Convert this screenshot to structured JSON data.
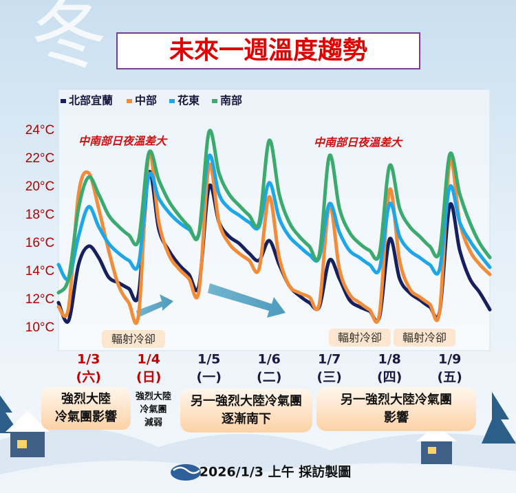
{
  "chart_data": {
    "type": "line",
    "title": "未來一週溫度趨勢",
    "watermark": "冬",
    "categories": [
      null,
      null,
      null,
      "1/3",
      null,
      null,
      null,
      null,
      null,
      "1/4",
      null,
      null,
      null,
      null,
      null,
      "1/5",
      null,
      null,
      null,
      null,
      null,
      "1/6",
      null,
      null,
      null,
      null,
      null,
      "1/7",
      null,
      null,
      null,
      null,
      null,
      "1/8",
      null,
      null,
      null,
      null,
      null,
      "1/9",
      null,
      null,
      null,
      null
    ],
    "weekdays": [
      null,
      null,
      null,
      "(六)",
      null,
      null,
      null,
      null,
      null,
      "(日)",
      null,
      null,
      null,
      null,
      null,
      "(一)",
      null,
      null,
      null,
      null,
      null,
      "(二)",
      null,
      null,
      null,
      null,
      null,
      "(三)",
      null,
      null,
      null,
      null,
      null,
      "(四)",
      null,
      null,
      null,
      null,
      null,
      "(五)",
      null,
      null,
      null,
      null
    ],
    "series": [
      {
        "name": "北部宜蘭",
        "color": "#16205e",
        "values": [
          11.8,
          10.5,
          14.5,
          15.8,
          15.0,
          13.6,
          13.2,
          12.8,
          12.5,
          21.0,
          17.0,
          15.5,
          14.5,
          13.8,
          13.0,
          20.0,
          17.5,
          16.5,
          16.0,
          15.3,
          14.8,
          16.2,
          14.5,
          13.0,
          12.3,
          11.8,
          11.5,
          14.8,
          13.5,
          12.0,
          11.5,
          11.2,
          10.8,
          16.3,
          13.5,
          12.5,
          12.0,
          11.5,
          11.2,
          18.7,
          15.5,
          13.5,
          12.5,
          11.3
        ]
      },
      {
        "name": "中部",
        "color": "#f28c38",
        "values": [
          11.5,
          11.4,
          19.5,
          21.0,
          18.5,
          15.5,
          13.0,
          11.8,
          11.0,
          22.3,
          17.5,
          15.2,
          14.2,
          13.5,
          12.6,
          21.5,
          17.5,
          16.0,
          15.3,
          14.8,
          14.2,
          19.3,
          15.0,
          13.0,
          12.5,
          12.2,
          11.7,
          18.7,
          14.2,
          12.4,
          11.8,
          11.3,
          11.0,
          19.8,
          14.8,
          12.8,
          12.2,
          11.7,
          11.2,
          21.8,
          17.5,
          15.5,
          14.5,
          13.8
        ]
      },
      {
        "name": "花東",
        "color": "#1ea7e8",
        "values": [
          14.5,
          13.5,
          16.5,
          18.6,
          17.2,
          16.0,
          15.3,
          14.8,
          14.6,
          20.8,
          19.2,
          18.2,
          17.5,
          17.0,
          16.7,
          22.2,
          19.5,
          18.5,
          18.0,
          17.5,
          17.2,
          20.3,
          17.8,
          16.5,
          15.8,
          15.2,
          15.0,
          18.8,
          16.8,
          15.5,
          15.0,
          14.5,
          14.2,
          18.8,
          16.5,
          15.5,
          15.0,
          14.5,
          14.2,
          20.0,
          17.5,
          16.2,
          15.2,
          14.3
        ]
      },
      {
        "name": "南部",
        "color": "#3aaa6e",
        "values": [
          12.5,
          13.5,
          18.5,
          20.7,
          19.5,
          18.0,
          17.2,
          16.6,
          16.3,
          22.4,
          20.5,
          19.0,
          18.0,
          17.2,
          16.7,
          23.9,
          21.0,
          19.5,
          18.7,
          18.0,
          17.5,
          23.3,
          19.5,
          17.5,
          16.5,
          15.8,
          15.2,
          22.2,
          18.5,
          16.8,
          16.0,
          15.5,
          15.3,
          21.5,
          18.5,
          17.2,
          16.5,
          15.8,
          15.5,
          22.3,
          19.5,
          17.5,
          16.0,
          15.0
        ]
      }
    ],
    "ylim": [
      9,
      27
    ],
    "yticks": [
      {
        "value": 10,
        "label": "10°C"
      },
      {
        "value": 12,
        "label": "12°C"
      },
      {
        "value": 14,
        "label": "14°C"
      },
      {
        "value": 16,
        "label": "16°C"
      },
      {
        "value": 18,
        "label": "18°C"
      },
      {
        "value": 20,
        "label": "20°C"
      },
      {
        "value": 22,
        "label": "22°C"
      },
      {
        "value": 24,
        "label": "24°C"
      }
    ],
    "grid": false,
    "annotations": [
      "中南部日夜溫差大",
      "中南部日夜溫差大"
    ],
    "cooling_labels": [
      "輻射冷卻",
      "輻射冷卻",
      "輻射冷卻"
    ],
    "notes": [
      {
        "lines": [
          "強烈大陸",
          "冷氣團影響"
        ]
      },
      {
        "lines": [
          "強烈大陸",
          "冷氣團",
          "減弱"
        ]
      },
      {
        "lines": [
          "另一強烈大陸冷氣團",
          "逐漸南下"
        ]
      },
      {
        "lines": [
          "另一強烈大陸冷氣團",
          "影響"
        ]
      }
    ],
    "footer": "2026/1/3 上午 採訪製圖"
  }
}
